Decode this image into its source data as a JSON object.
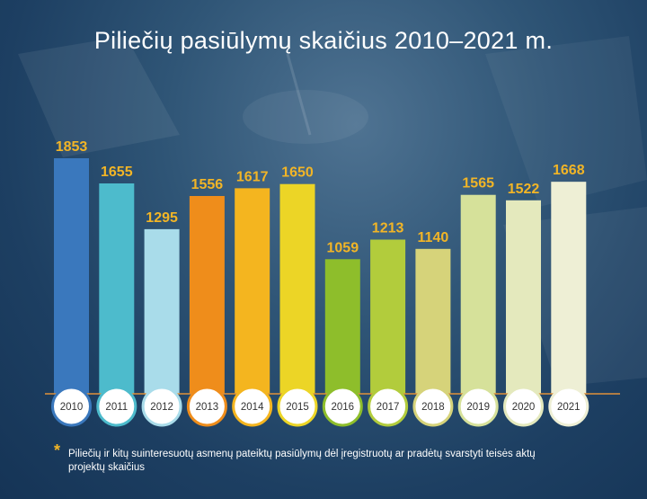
{
  "chart_data": {
    "type": "bar",
    "title": "Piliečių pasiūlymų skaičius 2010–2021 m.",
    "categories": [
      "2010",
      "2011",
      "2012",
      "2013",
      "2014",
      "2015",
      "2016",
      "2017",
      "2018",
      "2019",
      "2020",
      "2021"
    ],
    "values": [
      1853,
      1655,
      1295,
      1556,
      1617,
      1650,
      1059,
      1213,
      1140,
      1565,
      1522,
      1668
    ],
    "bar_colors": [
      "#3a78bd",
      "#4dbbcc",
      "#a9dcea",
      "#ef8d1b",
      "#f4b51f",
      "#ecd526",
      "#8ebe2b",
      "#b2cc3c",
      "#d6d37a",
      "#d6e19a",
      "#e4e9bd",
      "#eeefd5"
    ],
    "ring_colors": [
      "#3a78bd",
      "#4dbbcc",
      "#a9dcea",
      "#ef8d1b",
      "#f4b51f",
      "#ecd526",
      "#8ebe2b",
      "#b2cc3c",
      "#d6d37a",
      "#d6e19a",
      "#e4e9bd",
      "#eeefd5"
    ],
    "label_color": "#f2b526",
    "baseline_color": "#e0913a",
    "ylim": [
      0,
      1900
    ],
    "grid": false,
    "legend": "none"
  },
  "footnote": {
    "marker": "*",
    "text": "Piliečių ir kitų suinteresuotų asmenų pateiktų pasiūlymų dėl įregistruotų ar pradėtų svarstyti teisės aktų projektų skaičius"
  }
}
